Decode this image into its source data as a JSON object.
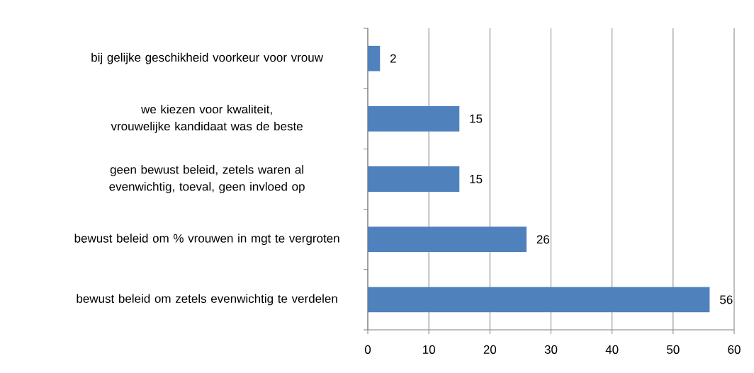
{
  "chart_data": {
    "type": "bar",
    "orientation": "horizontal",
    "categories": [
      "bij gelijke geschikheid voorkeur voor vrouw",
      "we kiezen voor kwaliteit, vrouwelijke kandidaat was de beste",
      "geen bewust beleid, zetels waren al evenwichtig, toeval, geen invloed op",
      "bewust beleid om % vrouwen in mgt te vergroten",
      "bewust beleid om zetels evenwichtig te verdelen"
    ],
    "values": [
      2,
      15,
      15,
      26,
      56
    ],
    "color": "#4f81bd",
    "xlim": [
      0,
      60
    ],
    "xticks": [
      0,
      10,
      20,
      30,
      40,
      50,
      60
    ],
    "grid": "x",
    "data_labels": true
  }
}
